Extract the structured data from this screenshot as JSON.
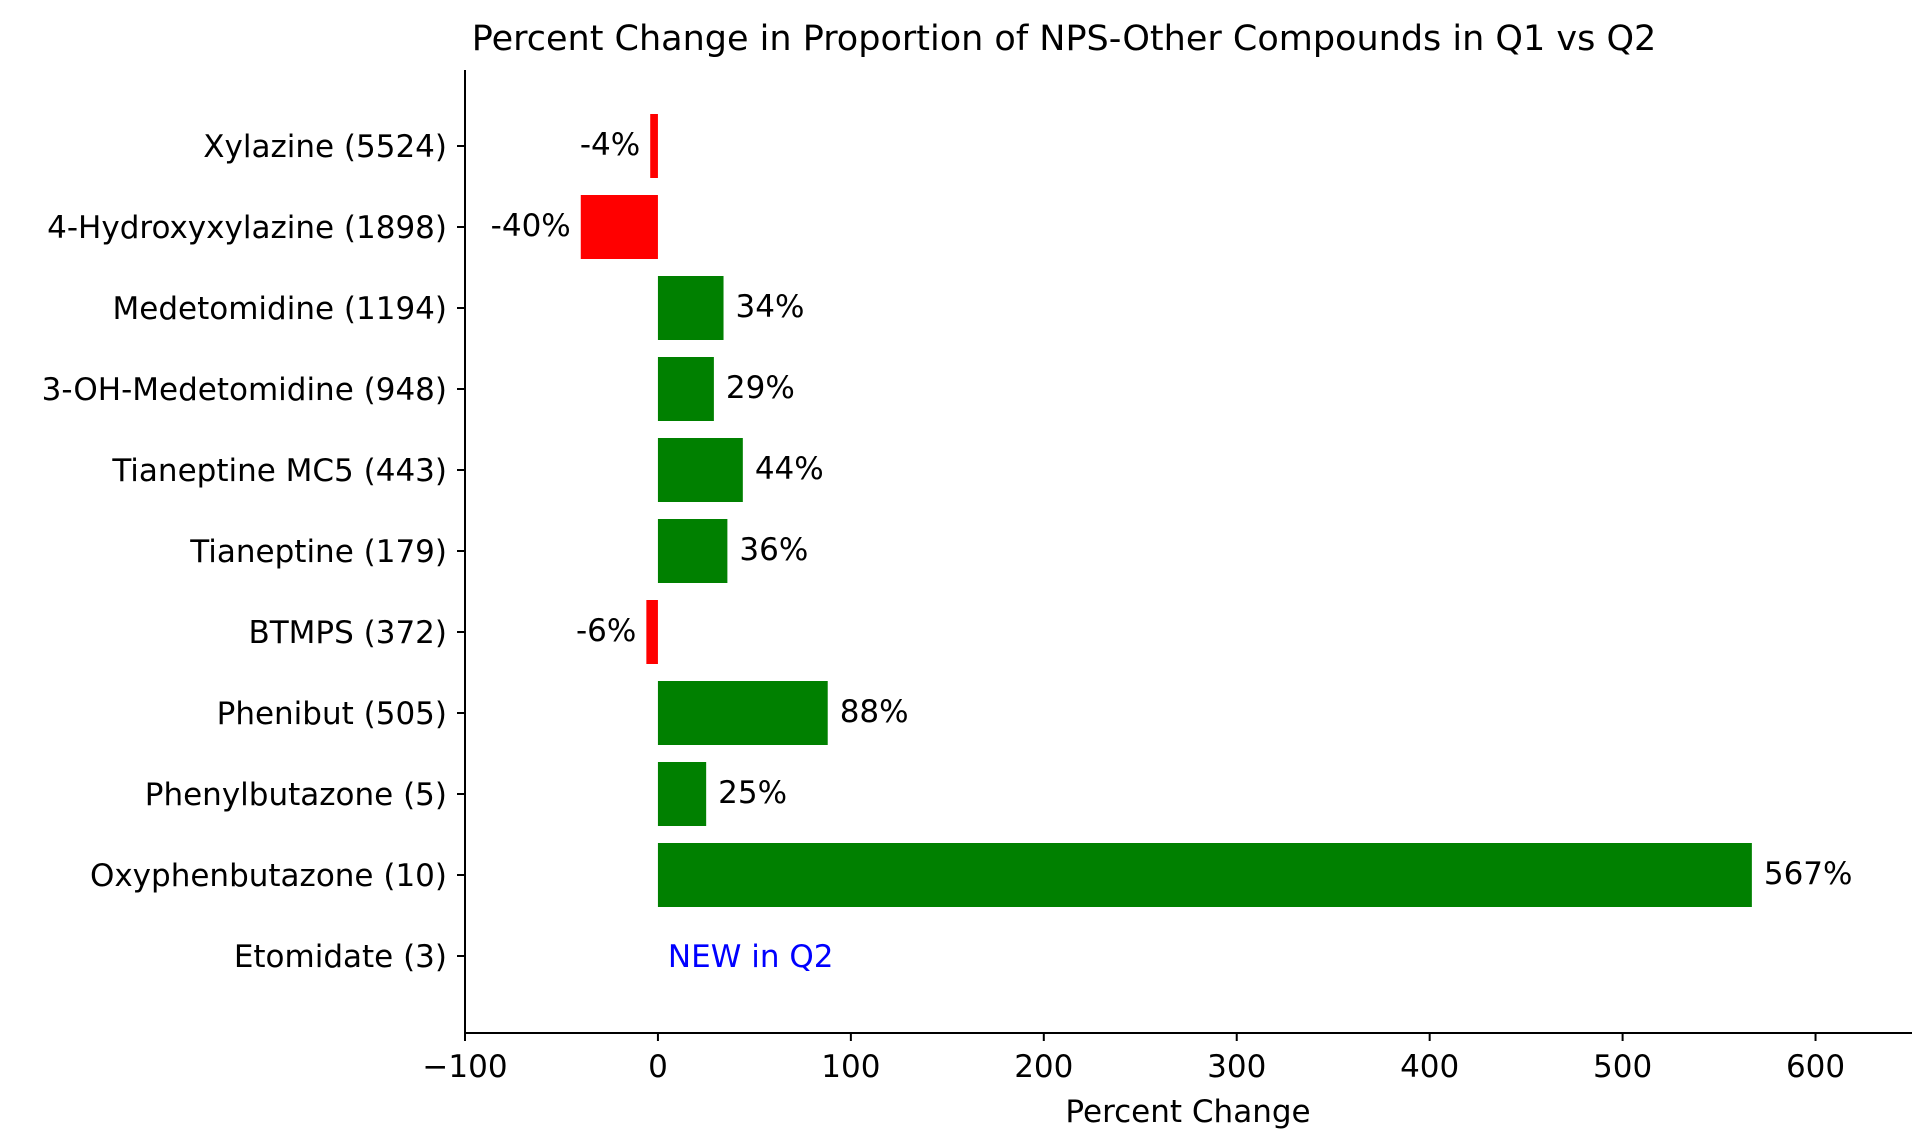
{
  "chart_data": {
    "type": "bar",
    "orientation": "horizontal",
    "title": "Percent Change in Proportion of NPS-Other Compounds in Q1 vs Q2",
    "xlabel": "Percent Change",
    "ylabel": "",
    "xlim": [
      -100,
      650
    ],
    "xticks": [
      -100,
      0,
      100,
      200,
      300,
      400,
      500,
      600
    ],
    "xtick_labels": [
      "−100",
      "0",
      "100",
      "200",
      "300",
      "400",
      "500",
      "600"
    ],
    "grid": false,
    "colors": {
      "positive": "#008000",
      "negative": "#ff0000",
      "new": "#0000ff"
    },
    "categories": [
      "Xylazine (5524)",
      "4-Hydroxyxylazine (1898)",
      "Medetomidine (1194)",
      "3-OH-Medetomidine (948)",
      "Tianeptine MC5 (443)",
      "Tianeptine (179)",
      "BTMPS (372)",
      "Phenibut (505)",
      "Phenylbutazone (5)",
      "Oxyphenbutazone (10)",
      "Etomidate (3)"
    ],
    "values": [
      -4,
      -40,
      34,
      29,
      44,
      36,
      -6,
      88,
      25,
      567,
      null
    ],
    "data_labels": [
      "-4%",
      "-40%",
      "34%",
      "29%",
      "44%",
      "36%",
      "-6%",
      "88%",
      "25%",
      "567%",
      "NEW in Q2"
    ]
  }
}
